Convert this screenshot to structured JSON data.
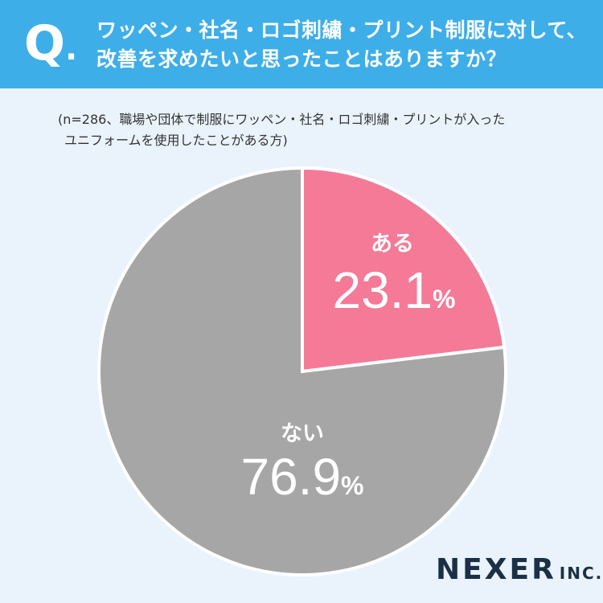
{
  "header": {
    "q_mark": "Q",
    "q_dot": ".",
    "question_line1": "ワッペン・社名・ロゴ刺繍・プリント制服に対して、",
    "question_line2": "改善を求めたいと思ったことはありますか？"
  },
  "note": {
    "line1": "(n=286、職場や団体で制服にワッペン・社名・ロゴ刺繍・プリントが入った",
    "line2": "ユニフォームを使用したことがある方)"
  },
  "chart_data": {
    "type": "pie",
    "title": "ワッペン・社名・ロゴ刺繍・プリント制服に対して、改善を求めたいと思ったことはありますか？",
    "subtitle": "(n=286、職場や団体で制服にワッペン・社名・ロゴ刺繍・プリントが入ったユニフォームを使用したことがある方)",
    "unit": "%",
    "slices": [
      {
        "label": "ある",
        "value": 23.1,
        "value_label": "23.1",
        "color": "#f47a97"
      },
      {
        "label": "ない",
        "value": 76.9,
        "value_label": "76.9",
        "color": "#a6a6a6"
      }
    ]
  },
  "logo": {
    "main": "NEXER",
    "sub": "INC."
  }
}
